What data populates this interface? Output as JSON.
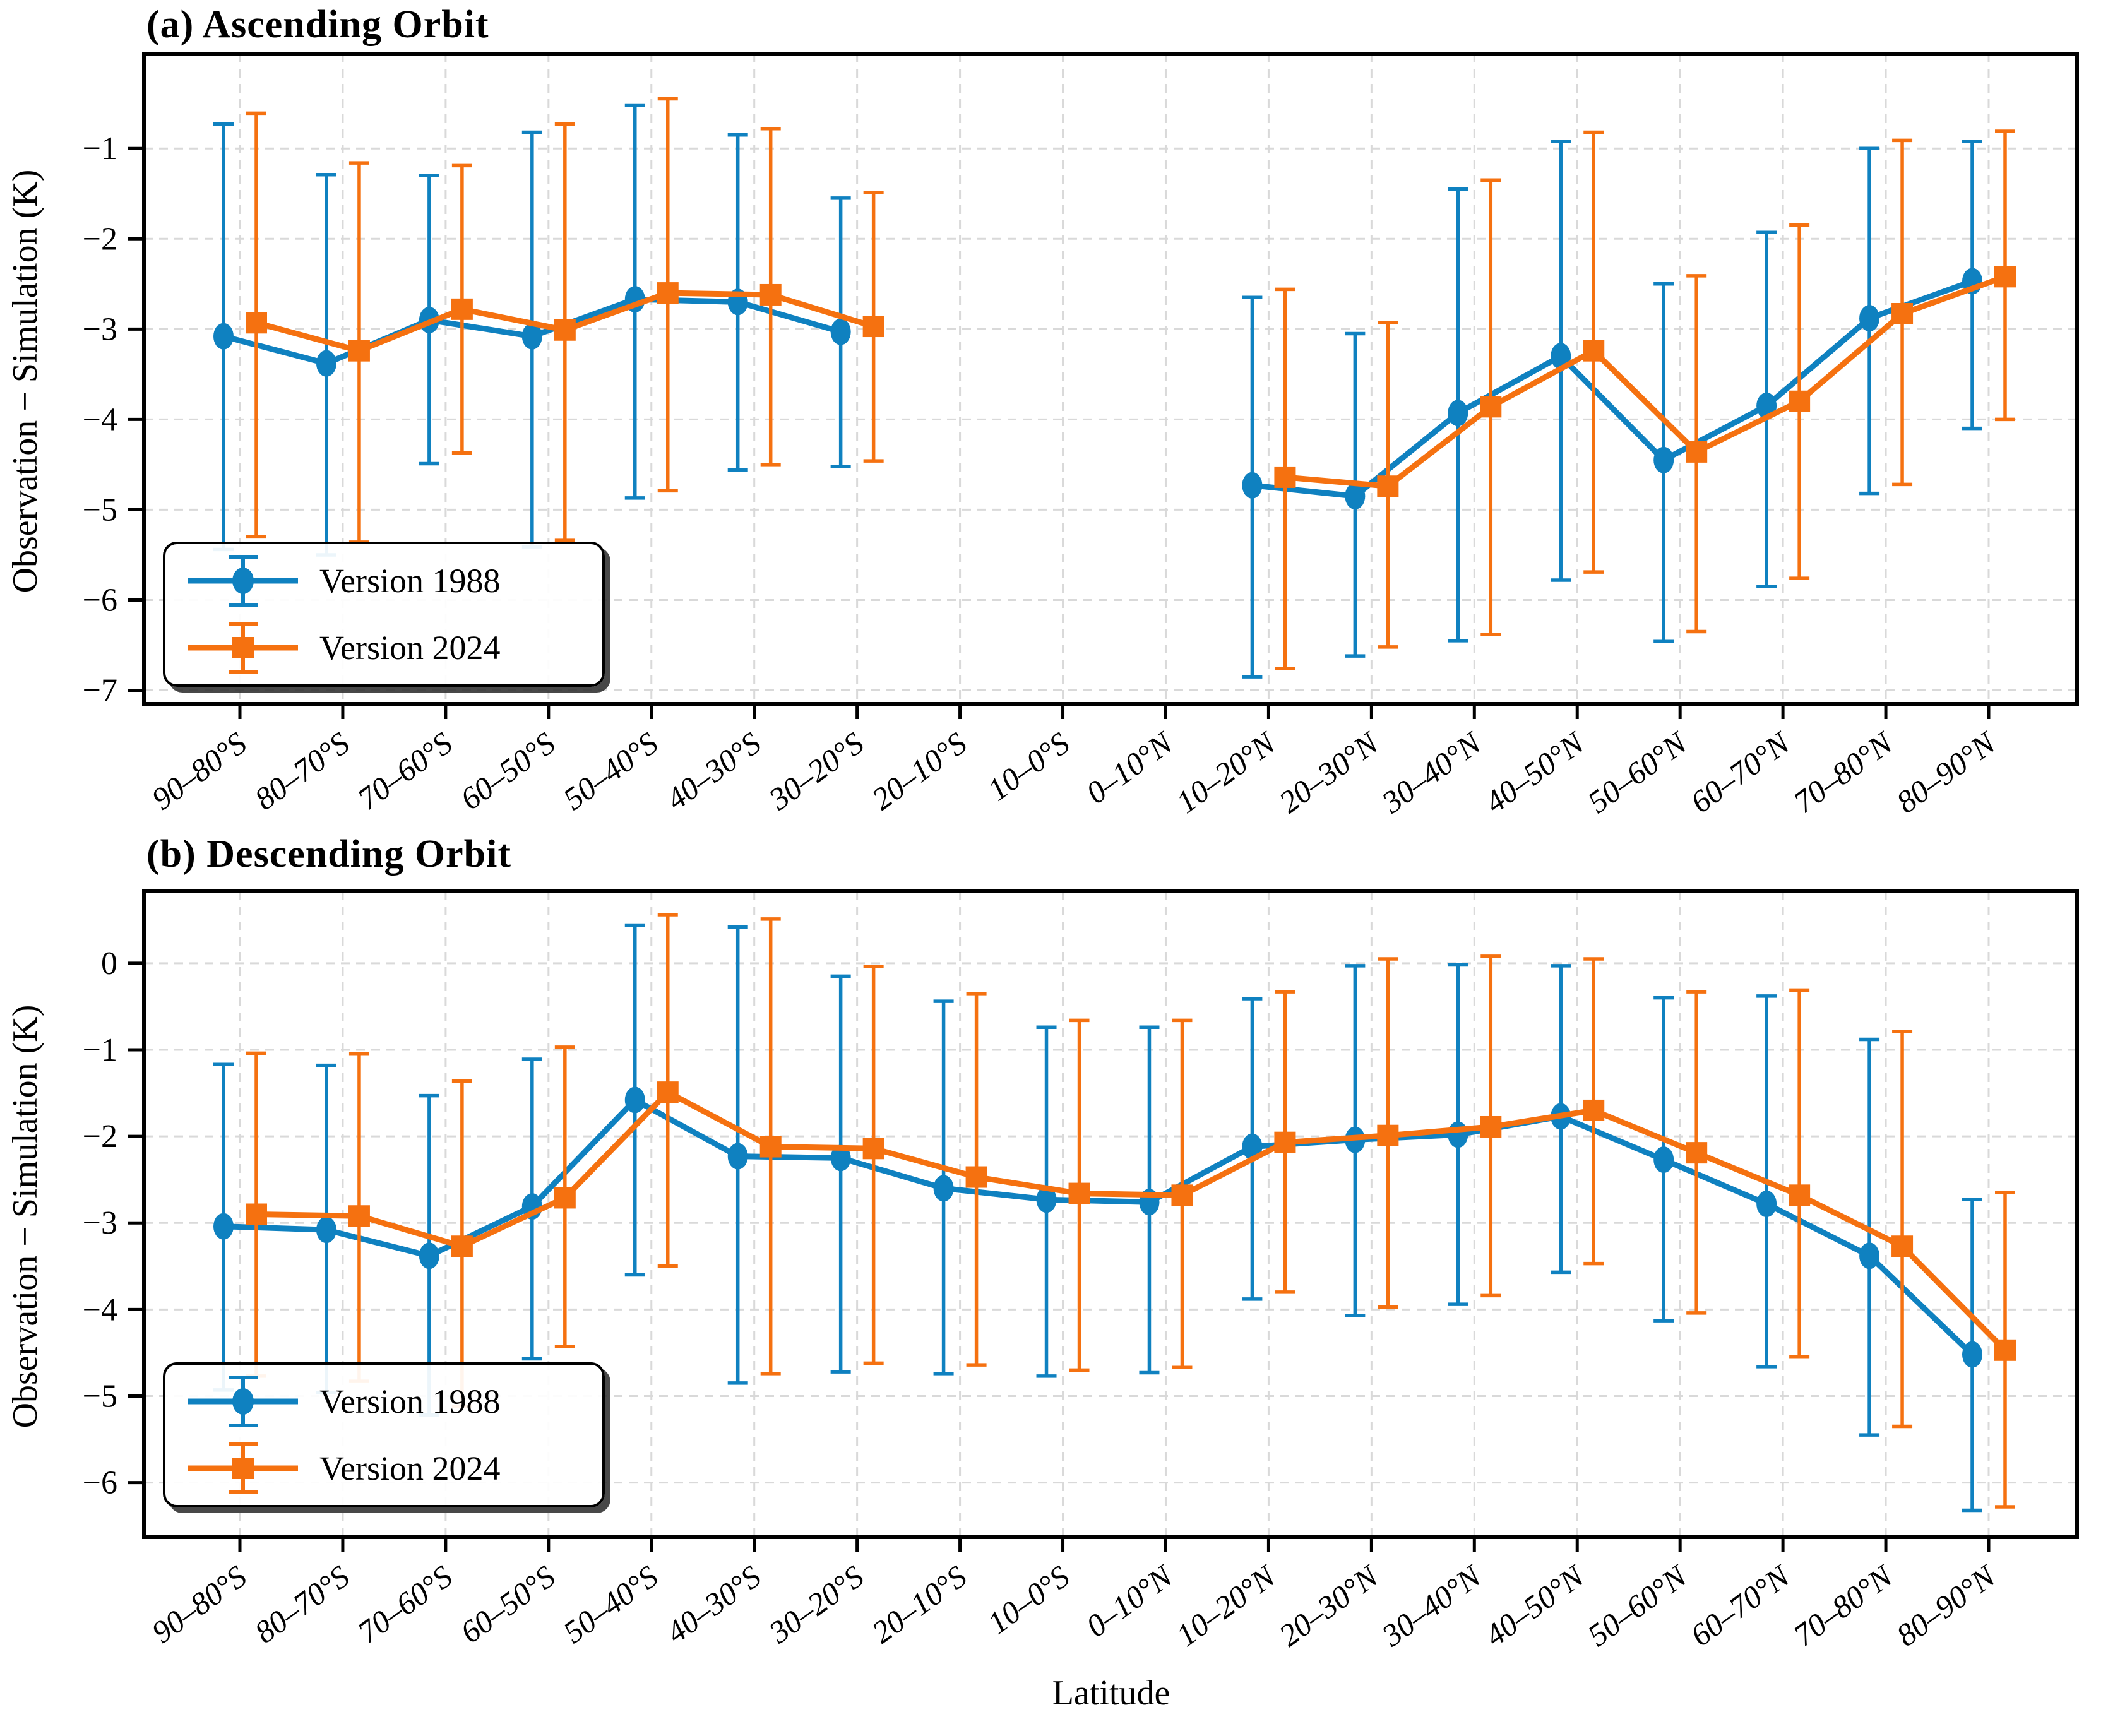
{
  "figure": {
    "xlabel": "Latitude",
    "background_color": "#ffffff",
    "colors": {
      "v1988": "#0f81c0",
      "v2024": "#f57110",
      "grid": "#d9d9d9",
      "axis": "#000000"
    }
  },
  "legend": {
    "position": "lower left",
    "entries": [
      {
        "label": "Version 1988",
        "marker": "circle",
        "color_key": "v1988"
      },
      {
        "label": "Version 2024",
        "marker": "square",
        "color_key": "v2024"
      }
    ]
  },
  "chart_data": [
    {
      "type": "line",
      "title": "(a) Ascending Orbit",
      "ylabel": "Observation − Simulation (K)",
      "xlabel": "",
      "grid": true,
      "ylim": [
        -7.15,
        0.05
      ],
      "yticks": [
        -1,
        -2,
        -3,
        -4,
        -5,
        -6,
        -7
      ],
      "categories": [
        "90–80°S",
        "80–70°S",
        "70–60°S",
        "60–50°S",
        "50–40°S",
        "40–30°S",
        "30–20°S",
        "20–10°S",
        "10–0°S",
        "0–10°N",
        "10–20°N",
        "20–30°N",
        "30–40°N",
        "40–50°N",
        "50–60°N",
        "60–70°N",
        "70–80°N",
        "80–90°N"
      ],
      "series": [
        {
          "name": "Version 1988",
          "color_key": "v1988",
          "marker": "circle",
          "values": [
            -3.08,
            -3.38,
            -2.9,
            -3.08,
            -2.67,
            -2.7,
            -3.03,
            null,
            null,
            null,
            -4.73,
            -4.85,
            -3.93,
            -3.3,
            -4.45,
            -3.85,
            -2.88,
            -2.47
          ],
          "err_lo": [
            -5.44,
            -5.5,
            -4.49,
            -5.41,
            -4.87,
            -4.56,
            -4.52,
            null,
            null,
            null,
            -6.85,
            -6.62,
            -6.45,
            -5.78,
            -6.46,
            -5.85,
            -4.82,
            -4.1
          ],
          "err_hi": [
            -0.73,
            -1.29,
            -1.3,
            -0.82,
            -0.52,
            -0.85,
            -1.55,
            null,
            null,
            null,
            -2.65,
            -3.05,
            -1.45,
            -0.92,
            -2.5,
            -1.93,
            -1.0,
            -0.92
          ]
        },
        {
          "name": "Version 2024",
          "color_key": "v2024",
          "marker": "square",
          "values": [
            -2.93,
            -3.24,
            -2.78,
            -3.01,
            -2.6,
            -2.62,
            -2.97,
            null,
            null,
            null,
            -4.64,
            -4.74,
            -3.86,
            -3.24,
            -4.36,
            -3.8,
            -2.83,
            -2.42
          ],
          "err_lo": [
            -5.3,
            -5.36,
            -4.37,
            -5.34,
            -4.79,
            -4.5,
            -4.46,
            null,
            null,
            null,
            -6.76,
            -6.52,
            -6.38,
            -5.69,
            -6.35,
            -5.76,
            -4.72,
            -4.0
          ],
          "err_hi": [
            -0.61,
            -1.16,
            -1.19,
            -0.73,
            -0.45,
            -0.78,
            -1.49,
            null,
            null,
            null,
            -2.56,
            -2.93,
            -1.35,
            -0.82,
            -2.41,
            -1.85,
            -0.91,
            -0.81
          ]
        }
      ]
    },
    {
      "type": "line",
      "title": "(b) Descending Orbit",
      "ylabel": "Observation − Simulation (K)",
      "xlabel": "Latitude",
      "grid": true,
      "ylim": [
        -6.63,
        0.83
      ],
      "yticks": [
        0,
        -1,
        -2,
        -3,
        -4,
        -5,
        -6
      ],
      "categories": [
        "90–80°S",
        "80–70°S",
        "70–60°S",
        "60–50°S",
        "50–40°S",
        "40–30°S",
        "30–20°S",
        "20–10°S",
        "10–0°S",
        "0–10°N",
        "10–20°N",
        "20–30°N",
        "30–40°N",
        "40–50°N",
        "50–60°N",
        "60–70°N",
        "70–80°N",
        "80–90°N"
      ],
      "series": [
        {
          "name": "Version 1988",
          "color_key": "v1988",
          "marker": "circle",
          "values": [
            -3.04,
            -3.08,
            -3.38,
            -2.81,
            -1.58,
            -2.23,
            -2.25,
            -2.6,
            -2.73,
            -2.76,
            -2.12,
            -2.04,
            -1.98,
            -1.77,
            -2.27,
            -2.78,
            -3.38,
            -4.52
          ],
          "err_lo": [
            -4.93,
            -4.96,
            -5.22,
            -4.57,
            -3.6,
            -4.85,
            -4.72,
            -4.74,
            -4.77,
            -4.73,
            -3.88,
            -4.07,
            -3.94,
            -3.57,
            -4.13,
            -4.66,
            -5.45,
            -6.32
          ],
          "err_hi": [
            -1.17,
            -1.18,
            -1.53,
            -1.11,
            0.44,
            0.42,
            -0.15,
            -0.44,
            -0.74,
            -0.74,
            -0.41,
            -0.03,
            -0.02,
            -0.03,
            -0.4,
            -0.38,
            -0.88,
            -2.73
          ]
        },
        {
          "name": "Version 2024",
          "color_key": "v2024",
          "marker": "square",
          "values": [
            -2.9,
            -2.92,
            -3.27,
            -2.71,
            -1.49,
            -2.12,
            -2.14,
            -2.47,
            -2.66,
            -2.68,
            -2.07,
            -1.99,
            -1.89,
            -1.7,
            -2.19,
            -2.68,
            -3.27,
            -4.47
          ],
          "err_lo": [
            -4.77,
            -4.83,
            -5.12,
            -4.43,
            -3.5,
            -4.74,
            -4.62,
            -4.64,
            -4.7,
            -4.67,
            -3.8,
            -3.97,
            -3.84,
            -3.47,
            -4.04,
            -4.55,
            -5.35,
            -6.28
          ],
          "err_hi": [
            -1.04,
            -1.05,
            -1.36,
            -0.97,
            0.56,
            0.51,
            -0.04,
            -0.35,
            -0.66,
            -0.66,
            -0.33,
            0.05,
            0.08,
            0.05,
            -0.33,
            -0.31,
            -0.79,
            -2.65
          ]
        }
      ]
    }
  ],
  "layout_text": {
    "panel_a_title": "(a) Ascending Orbit",
    "panel_b_title": "(b) Descending Orbit",
    "y_label": "Observation − Simulation (K)",
    "x_label": "Latitude"
  }
}
